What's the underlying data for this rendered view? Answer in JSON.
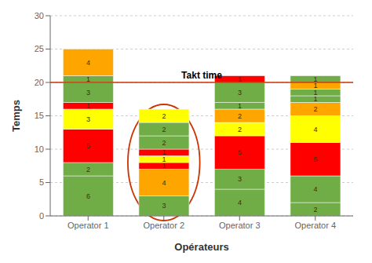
{
  "chart_data": {
    "type": "bar",
    "stacked": true,
    "data_labels": true,
    "grid": true,
    "categories": [
      "Operator 1",
      "Operator 2",
      "Operator 3",
      "Operator 4"
    ],
    "values": [
      [
        6,
        2,
        5,
        3,
        1,
        3,
        1,
        4
      ],
      [
        3,
        4,
        1,
        1,
        1,
        2,
        2,
        2
      ],
      [
        4,
        3,
        5,
        2,
        2,
        1,
        3,
        1
      ],
      [
        2,
        4,
        5,
        4,
        2,
        1,
        1,
        1,
        1
      ]
    ],
    "colors": [
      [
        "#70AD47",
        "#70AD47",
        "#FF0000",
        "#FFFF00",
        "#FF0000",
        "#70AD47",
        "#70AD47",
        "#FFA500"
      ],
      [
        "#70AD47",
        "#FFA500",
        "#FF0000",
        "#FFFF00",
        "#FF0000",
        "#70AD47",
        "#70AD47",
        "#FFFF00"
      ],
      [
        "#70AD47",
        "#70AD47",
        "#FF0000",
        "#FFFF00",
        "#FFA500",
        "#70AD47",
        "#70AD47",
        "#FF0000"
      ],
      [
        "#70AD47",
        "#70AD47",
        "#FF0000",
        "#FFFF00",
        "#FFA500",
        "#70AD47",
        "#70AD47",
        "#FFA500",
        "#70AD47"
      ]
    ],
    "xlabel": "Opérateurs",
    "ylabel": "Temps",
    "ylim": [
      0,
      30
    ],
    "yticks": [
      0,
      5,
      10,
      15,
      20,
      25,
      30
    ],
    "annotations": [
      {
        "type": "hline",
        "y": 20,
        "text": "Takt time",
        "color": "#CC3300"
      },
      {
        "type": "ellipse",
        "category": "Operator 2",
        "color": "#CC3300"
      }
    ]
  }
}
